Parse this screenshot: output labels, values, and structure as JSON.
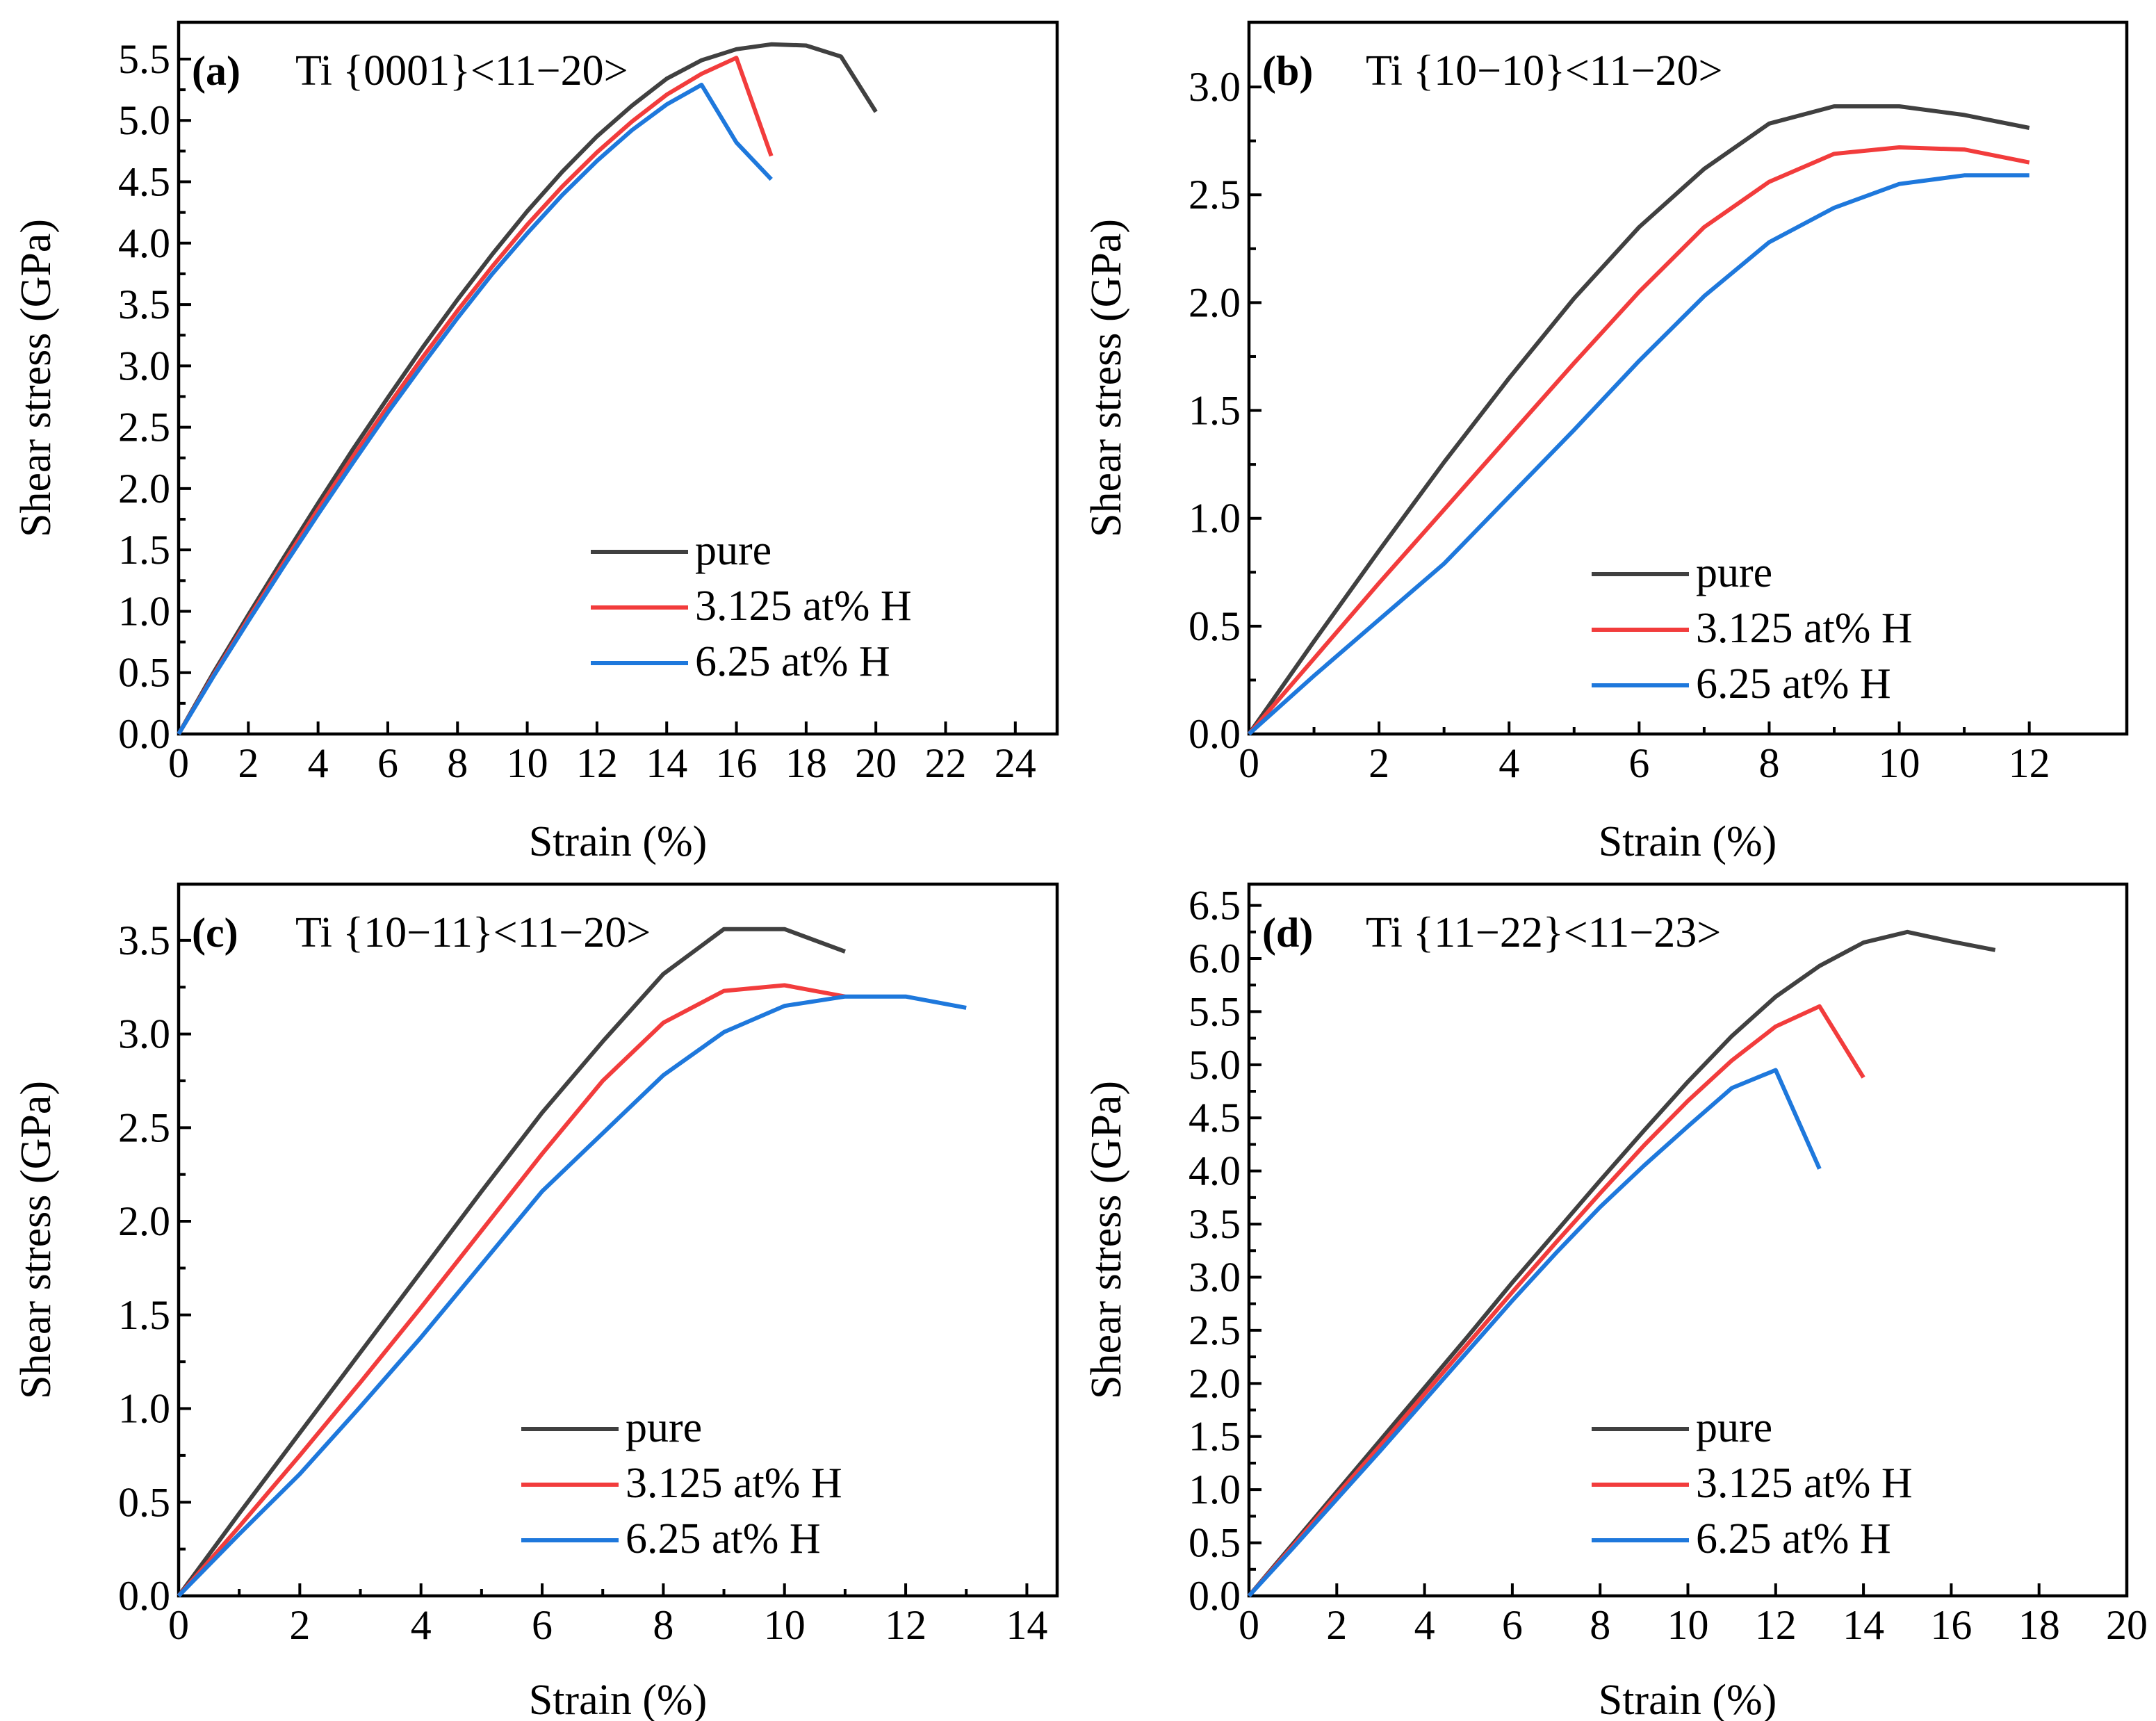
{
  "figure": {
    "colors": {
      "pure": "#404040",
      "h3125": "#f23c3c",
      "h625": "#1e78dc"
    },
    "panels": [
      {
        "id": "a",
        "label": "(a)",
        "title": "Ti {0001}<11−20>",
        "chart_data": {
          "type": "line",
          "xlabel": "Strain (%)",
          "ylabel": "Shear stress (GPa)",
          "xlim": [
            0,
            25.2
          ],
          "ylim": [
            0,
            5.8
          ],
          "xticks": [
            0,
            2,
            4,
            6,
            8,
            10,
            12,
            14,
            16,
            18,
            20,
            22,
            24
          ],
          "yticks": [
            0.0,
            0.5,
            1.0,
            1.5,
            2.0,
            2.5,
            3.0,
            3.5,
            4.0,
            4.5,
            5.0,
            5.5
          ],
          "xtick_labels": [
            "0",
            "2",
            "4",
            "6",
            "8",
            "10",
            "12",
            "14",
            "16",
            "18",
            "20",
            "22",
            "24"
          ],
          "ytick_labels": [
            "0.0",
            "0.5",
            "1.0",
            "1.5",
            "2.0",
            "2.5",
            "3.0",
            "3.5",
            "4.0",
            "4.5",
            "5.0",
            "5.5"
          ],
          "legend_position": "lower-center",
          "series": [
            {
              "name": "pure",
              "color_key": "pure",
              "x": [
                0,
                1,
                2,
                3,
                4,
                5,
                6,
                7,
                8,
                9,
                10,
                11,
                12,
                13,
                14,
                15,
                16,
                17,
                18,
                19,
                20
              ],
              "y": [
                0,
                0.5,
                0.97,
                1.43,
                1.88,
                2.32,
                2.74,
                3.15,
                3.54,
                3.91,
                4.26,
                4.58,
                4.87,
                5.12,
                5.34,
                5.49,
                5.58,
                5.62,
                5.61,
                5.52,
                5.07
              ]
            },
            {
              "name": "3.125 at% H",
              "color_key": "h3125",
              "x": [
                0,
                1,
                2,
                3,
                4,
                5,
                6,
                7,
                8,
                9,
                10,
                11,
                12,
                13,
                14,
                15,
                16,
                17
              ],
              "y": [
                0,
                0.48,
                0.94,
                1.39,
                1.83,
                2.26,
                2.67,
                3.07,
                3.45,
                3.81,
                4.15,
                4.46,
                4.74,
                4.99,
                5.21,
                5.38,
                5.51,
                4.71
              ]
            },
            {
              "name": "6.25 at% H",
              "color_key": "h625",
              "x": [
                0,
                1,
                2,
                3,
                4,
                5,
                6,
                7,
                8,
                9,
                10,
                11,
                12,
                13,
                14,
                15,
                16,
                17
              ],
              "y": [
                0,
                0.47,
                0.92,
                1.36,
                1.79,
                2.21,
                2.62,
                3.01,
                3.39,
                3.75,
                4.08,
                4.39,
                4.67,
                4.92,
                5.13,
                5.29,
                4.82,
                4.52
              ]
            }
          ]
        }
      },
      {
        "id": "b",
        "label": "(b)",
        "title": "Ti {10−10}<11−20>",
        "chart_data": {
          "type": "line",
          "xlabel": "Strain (%)",
          "ylabel": "Shear stress (GPa)",
          "xlim": [
            0,
            13.5
          ],
          "ylim": [
            0,
            3.3
          ],
          "xticks": [
            0,
            2,
            4,
            6,
            8,
            10,
            12
          ],
          "yticks": [
            0.0,
            0.5,
            1.0,
            1.5,
            2.0,
            2.5,
            3.0
          ],
          "xtick_labels": [
            "0",
            "2",
            "4",
            "6",
            "8",
            "10",
            "12"
          ],
          "ytick_labels": [
            "0.0",
            "0.5",
            "1.0",
            "1.5",
            "2.0",
            "2.5",
            "3.0"
          ],
          "legend_position": "lower-right",
          "series": [
            {
              "name": "pure",
              "color_key": "pure",
              "x": [
                0,
                1,
                2,
                3,
                4,
                5,
                6,
                7,
                8,
                9,
                10,
                11,
                12
              ],
              "y": [
                0,
                0.43,
                0.85,
                1.26,
                1.65,
                2.02,
                2.35,
                2.62,
                2.83,
                2.91,
                2.91,
                2.87,
                2.81
              ]
            },
            {
              "name": "3.125 at% H",
              "color_key": "h3125",
              "x": [
                0,
                1,
                2,
                3,
                4,
                5,
                6,
                7,
                8,
                9,
                10,
                11,
                12
              ],
              "y": [
                0,
                0.35,
                0.7,
                1.04,
                1.38,
                1.72,
                2.05,
                2.35,
                2.56,
                2.69,
                2.72,
                2.71,
                2.65
              ]
            },
            {
              "name": "6.25 at% H",
              "color_key": "h625",
              "x": [
                0,
                1,
                2,
                3,
                4,
                5,
                6,
                7,
                8,
                9,
                10,
                11,
                12
              ],
              "y": [
                0,
                0.27,
                0.53,
                0.79,
                1.1,
                1.41,
                1.73,
                2.03,
                2.28,
                2.44,
                2.55,
                2.59,
                2.59
              ]
            }
          ]
        }
      },
      {
        "id": "c",
        "label": "(c)",
        "title": "Ti {10−11}<11−20>",
        "chart_data": {
          "type": "line",
          "xlabel": "Strain (%)",
          "ylabel": "Shear stress (GPa)",
          "xlim": [
            0,
            14.5
          ],
          "ylim": [
            0,
            3.8
          ],
          "xticks": [
            0,
            2,
            4,
            6,
            8,
            10,
            12,
            14
          ],
          "yticks": [
            0.0,
            0.5,
            1.0,
            1.5,
            2.0,
            2.5,
            3.0,
            3.5
          ],
          "xtick_labels": [
            "0",
            "2",
            "4",
            "6",
            "8",
            "10",
            "12",
            "14"
          ],
          "ytick_labels": [
            "0.0",
            "0.5",
            "1.0",
            "1.5",
            "2.0",
            "2.5",
            "3.0",
            "3.5"
          ],
          "legend_position": "lower-center",
          "series": [
            {
              "name": "pure",
              "color_key": "pure",
              "x": [
                0,
                1,
                2,
                3,
                4,
                5,
                6,
                7,
                8,
                9,
                10,
                11
              ],
              "y": [
                0,
                0.44,
                0.87,
                1.3,
                1.73,
                2.16,
                2.58,
                2.96,
                3.32,
                3.56,
                3.56,
                3.44
              ]
            },
            {
              "name": "3.125 at% H",
              "color_key": "h3125",
              "x": [
                0,
                1,
                2,
                3,
                4,
                5,
                6,
                7,
                8,
                9,
                10,
                11
              ],
              "y": [
                0,
                0.37,
                0.75,
                1.14,
                1.54,
                1.95,
                2.36,
                2.75,
                3.06,
                3.23,
                3.26,
                3.2
              ]
            },
            {
              "name": "6.25 at% H",
              "color_key": "h625",
              "x": [
                0,
                1,
                2,
                3,
                4,
                5,
                6,
                7,
                8,
                9,
                10,
                11,
                12,
                13
              ],
              "y": [
                0,
                0.33,
                0.65,
                1.01,
                1.38,
                1.77,
                2.16,
                2.47,
                2.78,
                3.01,
                3.15,
                3.2,
                3.2,
                3.14
              ]
            }
          ]
        }
      },
      {
        "id": "d",
        "label": "(d)",
        "title": "Ti {11−22}<11−23>",
        "chart_data": {
          "type": "line",
          "xlabel": "Strain (%)",
          "ylabel": "Shear stress (GPa)",
          "xlim": [
            0,
            20
          ],
          "ylim": [
            0,
            6.7
          ],
          "xticks": [
            0,
            2,
            4,
            6,
            8,
            10,
            12,
            14,
            16,
            18,
            20
          ],
          "yticks": [
            0.0,
            0.5,
            1.0,
            1.5,
            2.0,
            2.5,
            3.0,
            3.5,
            4.0,
            4.5,
            5.0,
            5.5,
            6.0,
            6.5
          ],
          "xtick_labels": [
            "0",
            "2",
            "4",
            "6",
            "8",
            "10",
            "12",
            "14",
            "16",
            "18",
            "20"
          ],
          "ytick_labels": [
            "0.0",
            "0.5",
            "1.0",
            "1.5",
            "2.0",
            "2.5",
            "3.0",
            "3.5",
            "4.0",
            "4.5",
            "5.0",
            "5.5",
            "6.0",
            "6.5"
          ],
          "legend_position": "lower-right",
          "series": [
            {
              "name": "pure",
              "color_key": "pure",
              "x": [
                0,
                1,
                2,
                3,
                4,
                5,
                6,
                7,
                8,
                9,
                10,
                11,
                12,
                13,
                14,
                15,
                16,
                17
              ],
              "y": [
                0,
                0.49,
                0.98,
                1.47,
                1.96,
                2.45,
                2.95,
                3.43,
                3.91,
                4.38,
                4.84,
                5.27,
                5.64,
                5.93,
                6.15,
                6.25,
                6.16,
                6.08
              ]
            },
            {
              "name": "3.125 at% H",
              "color_key": "h3125",
              "x": [
                0,
                1,
                2,
                3,
                4,
                5,
                6,
                7,
                8,
                9,
                10,
                11,
                12,
                13,
                14
              ],
              "y": [
                0,
                0.47,
                0.95,
                1.42,
                1.9,
                2.38,
                2.86,
                3.33,
                3.79,
                4.24,
                4.66,
                5.04,
                5.36,
                5.55,
                4.88
              ]
            },
            {
              "name": "6.25 at% H",
              "color_key": "h625",
              "x": [
                0,
                1,
                2,
                3,
                4,
                5,
                6,
                7,
                8,
                9,
                10,
                11,
                12,
                13
              ],
              "y": [
                0,
                0.45,
                0.91,
                1.37,
                1.84,
                2.31,
                2.78,
                3.23,
                3.66,
                4.05,
                4.42,
                4.78,
                4.95,
                4.02
              ]
            }
          ]
        }
      }
    ]
  }
}
